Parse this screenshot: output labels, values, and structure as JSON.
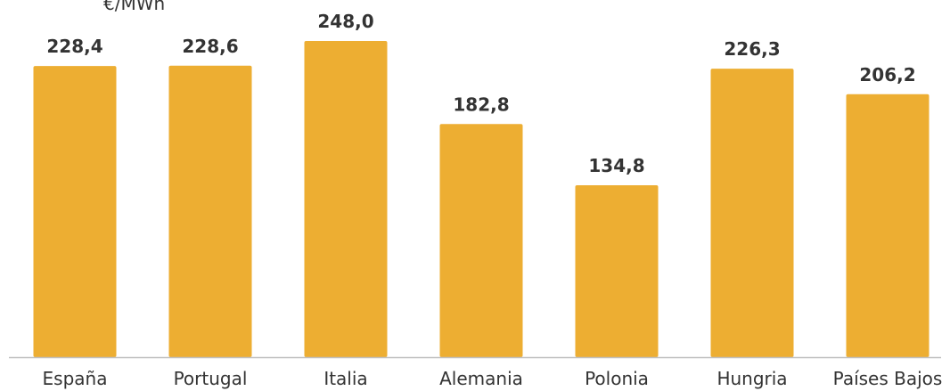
{
  "chart_data": {
    "type": "bar",
    "ylabel": "€/MWh",
    "categories": [
      "España",
      "Portugal",
      "Italia",
      "Alemania",
      "Polonia",
      "Hungria",
      "Países Bajos"
    ],
    "values": [
      228.4,
      228.6,
      248.0,
      182.8,
      134.8,
      226.3,
      206.2
    ],
    "value_labels": [
      "228,4",
      "228,6",
      "248,0",
      "182,8",
      "134,8",
      "226,3",
      "206,2"
    ],
    "ylim": [
      0,
      248.0
    ],
    "grid": false,
    "legend": "none",
    "bar_color": "#EDAE32",
    "axis_color": "#BFBFBF",
    "text_color": "#333333"
  }
}
